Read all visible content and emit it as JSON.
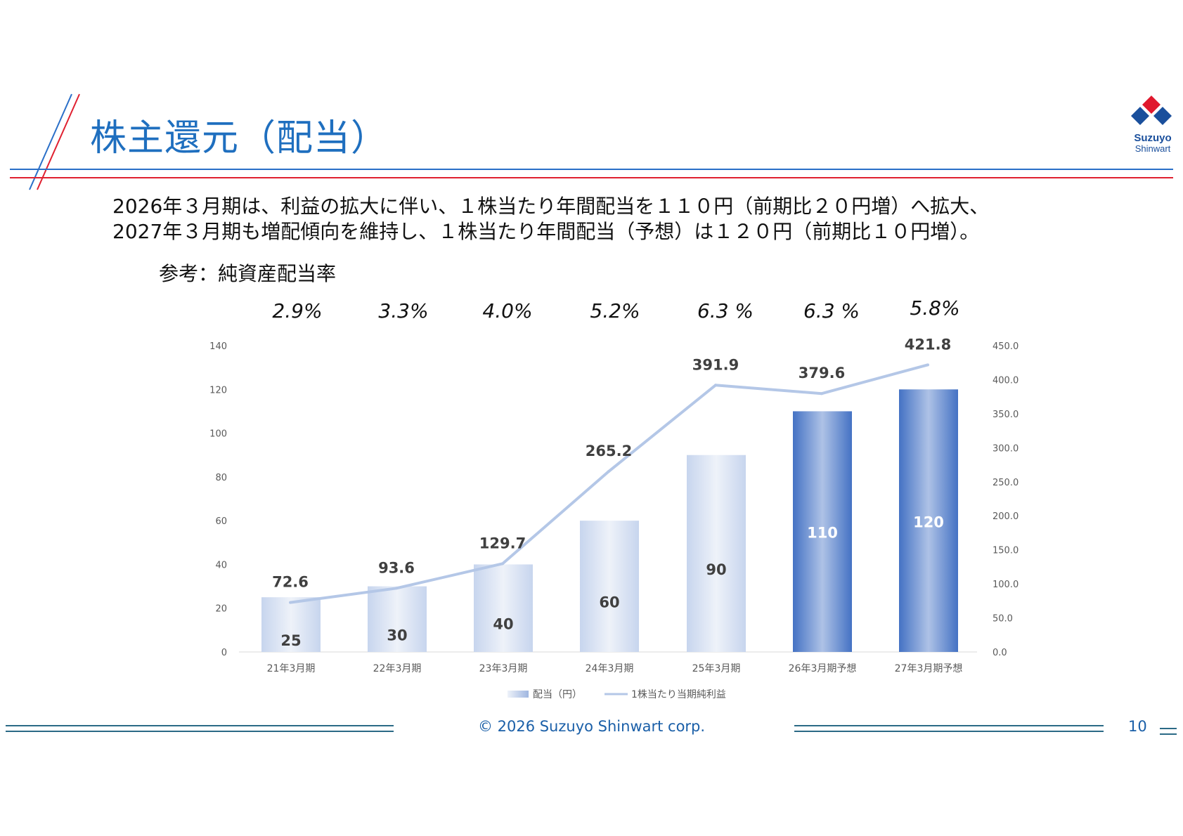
{
  "title": "株主還元（配当）",
  "logo": {
    "top": "Suzuyo",
    "bottom": "Shinwart"
  },
  "intro": {
    "line1": "2026年３月期は、利益の拡大に伴い、１株当たり年間配当を１１０円（前期比２０円増）へ拡大、",
    "line2": "2027年３月期も増配傾向を維持し、１株当たり年間配当（予想）は１２０円（前期比１０円増）。"
  },
  "reference_label": "参考：純資産配当率",
  "payout_ratios": [
    "2.9%",
    "3.3%",
    "4.0%",
    "5.2%",
    "6.3 %",
    "6.3 %",
    "5.8%"
  ],
  "colors": {
    "title": "#1f6fbf",
    "rule_blue": "#2a6fc8",
    "rule_red": "#e02030",
    "bar_light": "#c9d6ef",
    "bar_dark": "#4472c4",
    "line": "#b4c7e7",
    "footer": "#1a5fa8"
  },
  "chart_data": {
    "type": "bar",
    "categories": [
      "21年3月期",
      "22年3月期",
      "23年3月期",
      "24年3月期",
      "25年3月期",
      "26年3月期予想",
      "27年3月期予想"
    ],
    "series": [
      {
        "name": "配当（円）",
        "type": "bar",
        "axis": "left",
        "values": [
          25,
          30,
          40,
          60,
          90,
          110,
          120
        ],
        "forecast": [
          false,
          false,
          false,
          false,
          false,
          true,
          true
        ]
      },
      {
        "name": "1株当たり当期純利益",
        "type": "line",
        "axis": "right",
        "values": [
          72.6,
          93.6,
          129.7,
          265.2,
          391.9,
          379.6,
          421.8
        ]
      }
    ],
    "y_left": {
      "min": 0,
      "max": 140,
      "ticks": [
        "0",
        "20",
        "40",
        "60",
        "80",
        "100",
        "120",
        "140"
      ]
    },
    "y_right": {
      "min": 0,
      "max": 450,
      "ticks": [
        "0.0",
        "50.0",
        "100.0",
        "150.0",
        "200.0",
        "250.0",
        "300.0",
        "350.0",
        "400.0",
        "450.0"
      ]
    },
    "bar_labels": [
      "25",
      "30",
      "40",
      "60",
      "90",
      "110",
      "120"
    ],
    "line_labels": [
      "72.6",
      "93.6",
      "129.7",
      "265.2",
      "391.9",
      "379.6",
      "421.8"
    ],
    "legend": {
      "position": "bottom",
      "entries": [
        "配当（円）",
        "1株当たり当期純利益"
      ]
    },
    "grid": false
  },
  "footer": {
    "copyright": "© 2026 Suzuyo Shinwart corp.",
    "page": "10"
  }
}
